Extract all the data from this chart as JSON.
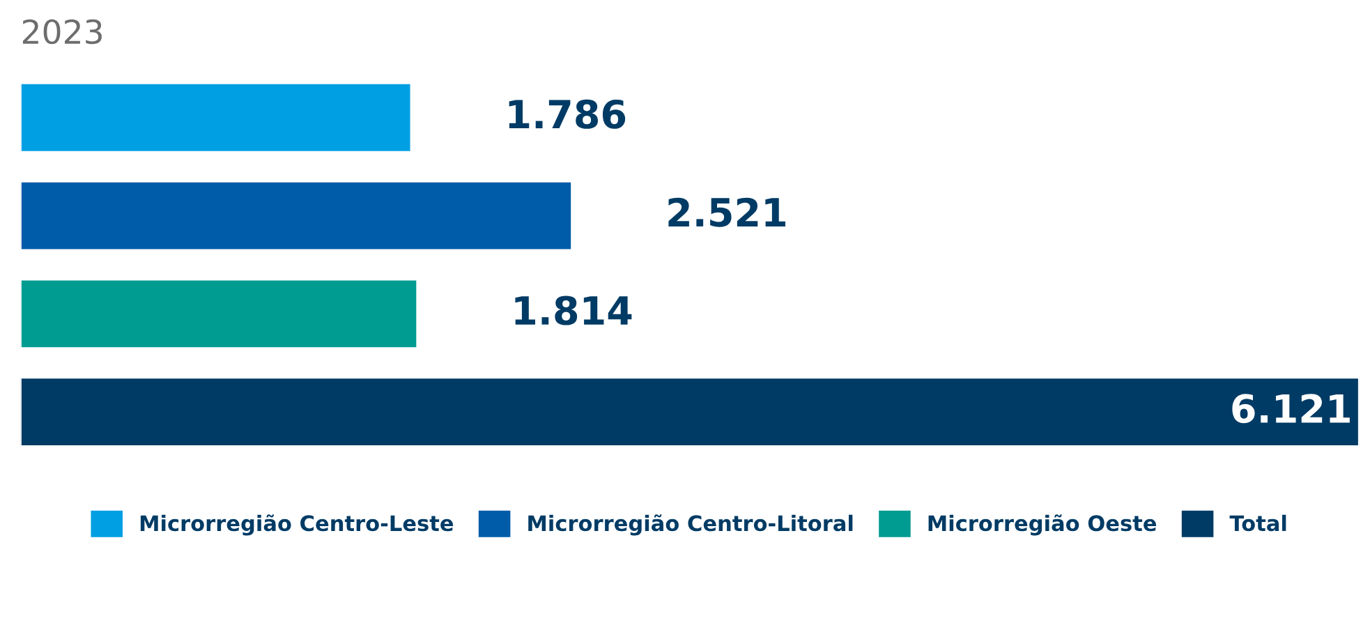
{
  "chart_data": {
    "type": "bar",
    "orientation": "horizontal",
    "title": "2023",
    "categories": [
      null,
      null,
      null,
      null
    ],
    "series": [
      {
        "name": "Microrregião Centro-Leste",
        "color": "#009fe3",
        "values": [
          1786,
          null,
          null,
          null
        ],
        "value_labels": [
          "1.786",
          null,
          null,
          null
        ]
      },
      {
        "name": "Microrregião Centro-Litoral",
        "color": "#005ca9",
        "values": [
          null,
          2521,
          null,
          null
        ],
        "value_labels": [
          null,
          "2.521",
          null,
          null
        ]
      },
      {
        "name": "Microrregião Oeste",
        "color": "#009b91",
        "values": [
          null,
          null,
          1814,
          null
        ],
        "value_labels": [
          null,
          null,
          "1.814",
          null
        ]
      },
      {
        "name": "Total",
        "color": "#003b65",
        "values": [
          null,
          null,
          null,
          6121
        ],
        "value_labels": [
          null,
          null,
          null,
          "6.121"
        ]
      }
    ],
    "stacked": true,
    "legend": "bottom"
  }
}
